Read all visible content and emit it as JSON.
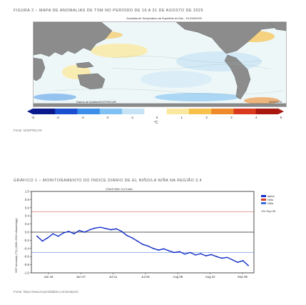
{
  "figure2": {
    "title": "FIGURA 2 – MAPA DE ANOMALIAS DE TSM NO PERÍODO DE 16 A 31 DE AGOSTO DE 2025",
    "map_caption": "Anomalia de Temperatura da Superfície do Mar - 16-31/8/2025",
    "map_footer_left": "Dados de Análise/NCEP/NCAR",
    "map_footer_right": "31/8/2025",
    "colorbar_ticks": [
      "-5",
      "-4",
      "-3",
      "-2",
      "-1",
      "0",
      "1",
      "2",
      "3",
      "4",
      "5"
    ],
    "colorbar_colors": [
      "#0a1a8c",
      "#1c4fd0",
      "#3b8fe8",
      "#7ec1f2",
      "#c6e4f6",
      "#ffffff",
      "#fbe8a0",
      "#f6c24b",
      "#ef8a2b",
      "#d9391d",
      "#a8180f"
    ],
    "unit": "°C",
    "source": "Fonte: NCEP/NCAR."
  },
  "grafico1": {
    "title": "GRÁFICO 1 – MONITORAMENTO DO ÍNDICE DIÁRIO DE EL NIÑO/LA NIÑA NA REGIÃO 3.4",
    "caption": "CDAS Niño 3.4 Index",
    "legend": {
      "items": [
        {
          "label": "latest",
          "color": "#1530c8"
        },
        {
          "label": "Niño",
          "color": "#d33c2c"
        },
        {
          "label": "Niña",
          "color": "#3a6de0"
        }
      ],
      "date": "12z Sep 05"
    },
    "source": "Fonte: https://www.tropicaltidbits.com/analysis/."
  },
  "chart_data": {
    "type": "line",
    "title": "CDAS Niño 3.4 Index",
    "ylabel": "SST Anomaly (°C) (1981-2010 climatology)",
    "ylim": [
      -1.0,
      1.0
    ],
    "yticks": [
      "1.0",
      "0.8",
      "0.6",
      "0.4",
      "0.2",
      "0.0",
      "-0.2",
      "-0.4",
      "-0.6",
      "-0.8",
      "-1.0"
    ],
    "xticks": [
      "Jun 16",
      "Jun 27",
      "Jul 11",
      "Jul 25",
      "Aug 08",
      "Aug 22",
      "Sep 05"
    ],
    "series": [
      {
        "name": "latest",
        "x": [
          "Jun 16",
          "Jun 18",
          "Jun 20",
          "Jun 22",
          "Jun 24",
          "Jun 26",
          "Jun 28",
          "Jun 30",
          "Jul 02",
          "Jul 04",
          "Jul 06",
          "Jul 08",
          "Jul 10",
          "Jul 12",
          "Jul 14",
          "Jul 16",
          "Jul 18",
          "Jul 20",
          "Jul 22",
          "Jul 24",
          "Jul 26",
          "Jul 28",
          "Jul 30",
          "Aug 01",
          "Aug 03",
          "Aug 05",
          "Aug 07",
          "Aug 09",
          "Aug 11",
          "Aug 13",
          "Aug 15",
          "Aug 17",
          "Aug 19",
          "Aug 21",
          "Aug 23",
          "Aug 25",
          "Aug 27",
          "Aug 29",
          "Aug 31",
          "Sep 02",
          "Sep 05"
        ],
        "values": [
          -0.1,
          -0.22,
          -0.14,
          -0.04,
          -0.1,
          -0.02,
          0.02,
          -0.04,
          0.04,
          0.0,
          0.06,
          0.1,
          0.12,
          0.09,
          0.06,
          0.08,
          0.02,
          -0.08,
          -0.14,
          -0.22,
          -0.3,
          -0.34,
          -0.4,
          -0.44,
          -0.41,
          -0.46,
          -0.5,
          -0.48,
          -0.54,
          -0.5,
          -0.56,
          -0.53,
          -0.58,
          -0.55,
          -0.6,
          -0.64,
          -0.62,
          -0.68,
          -0.74,
          -0.7,
          -0.82
        ]
      }
    ]
  }
}
